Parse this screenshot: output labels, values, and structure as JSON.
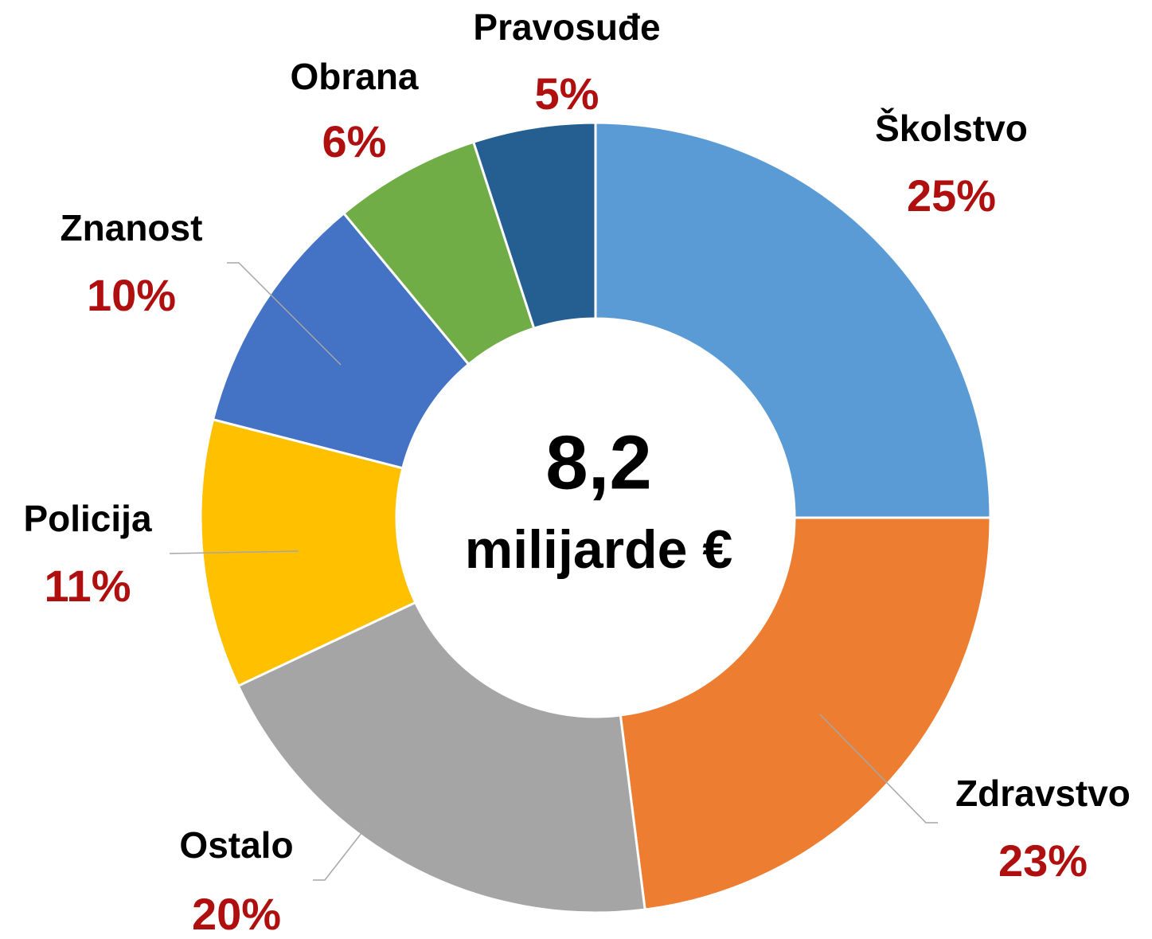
{
  "chart_data": {
    "type": "donut",
    "categories": [
      "Školstvo",
      "Zdravstvo",
      "Ostalo",
      "Policija",
      "Znanost",
      "Obrana",
      "Pravosuđe"
    ],
    "values": [
      25,
      23,
      20,
      11,
      10,
      6,
      5
    ],
    "value_labels": [
      "25%",
      "23%",
      "20%",
      "11%",
      "10%",
      "6%",
      "5%"
    ],
    "colors": [
      "#5b9bd5",
      "#ed7d31",
      "#a5a5a5",
      "#ffc000",
      "#4472c4",
      "#70ad47",
      "#255e91"
    ],
    "center_label": [
      "8,2",
      "milijarde €"
    ]
  }
}
